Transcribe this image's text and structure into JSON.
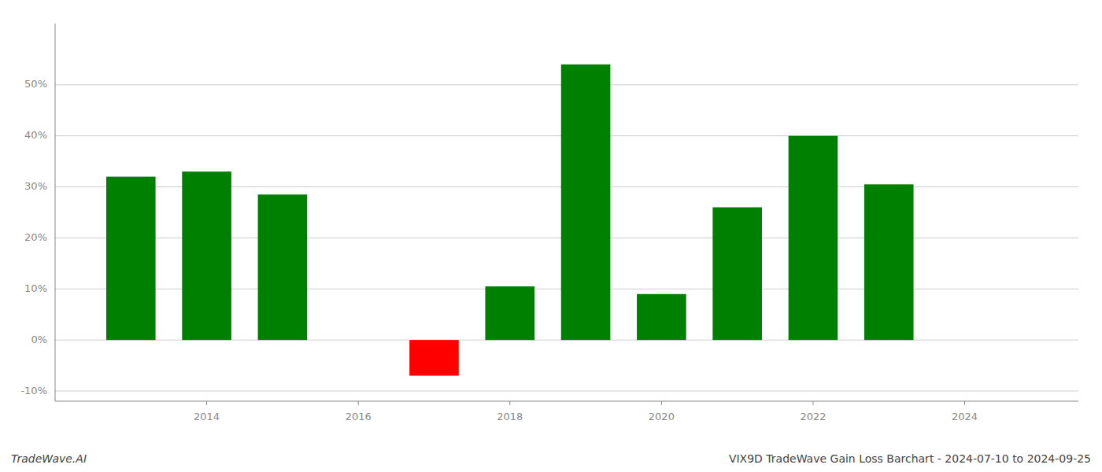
{
  "chart_data": {
    "type": "bar",
    "x": [
      2013,
      2014,
      2015,
      2017,
      2018,
      2019,
      2020,
      2021,
      2022,
      2023
    ],
    "values": [
      0.32,
      0.33,
      0.285,
      -0.07,
      0.105,
      0.54,
      0.09,
      0.26,
      0.4,
      0.305
    ],
    "colors": [
      "#008000",
      "#008000",
      "#008000",
      "#ff0000",
      "#008000",
      "#008000",
      "#008000",
      "#008000",
      "#008000",
      "#008000"
    ],
    "ylim": [
      -0.12,
      0.62
    ],
    "yticks": [
      {
        "value": -0.1,
        "label": "-10%"
      },
      {
        "value": 0.0,
        "label": "0%"
      },
      {
        "value": 0.1,
        "label": "10%"
      },
      {
        "value": 0.2,
        "label": "20%"
      },
      {
        "value": 0.3,
        "label": "30%"
      },
      {
        "value": 0.4,
        "label": "40%"
      },
      {
        "value": 0.5,
        "label": "50%"
      }
    ],
    "xlim": [
      2012.0,
      2025.5
    ],
    "xticks": [
      2014,
      2016,
      2018,
      2020,
      2022,
      2024
    ],
    "grid": true,
    "annotations": [
      "TradeWave.AI",
      "VIX9D TradeWave Gain Loss Barchart - 2024-07-10 to 2024-09-25"
    ]
  }
}
